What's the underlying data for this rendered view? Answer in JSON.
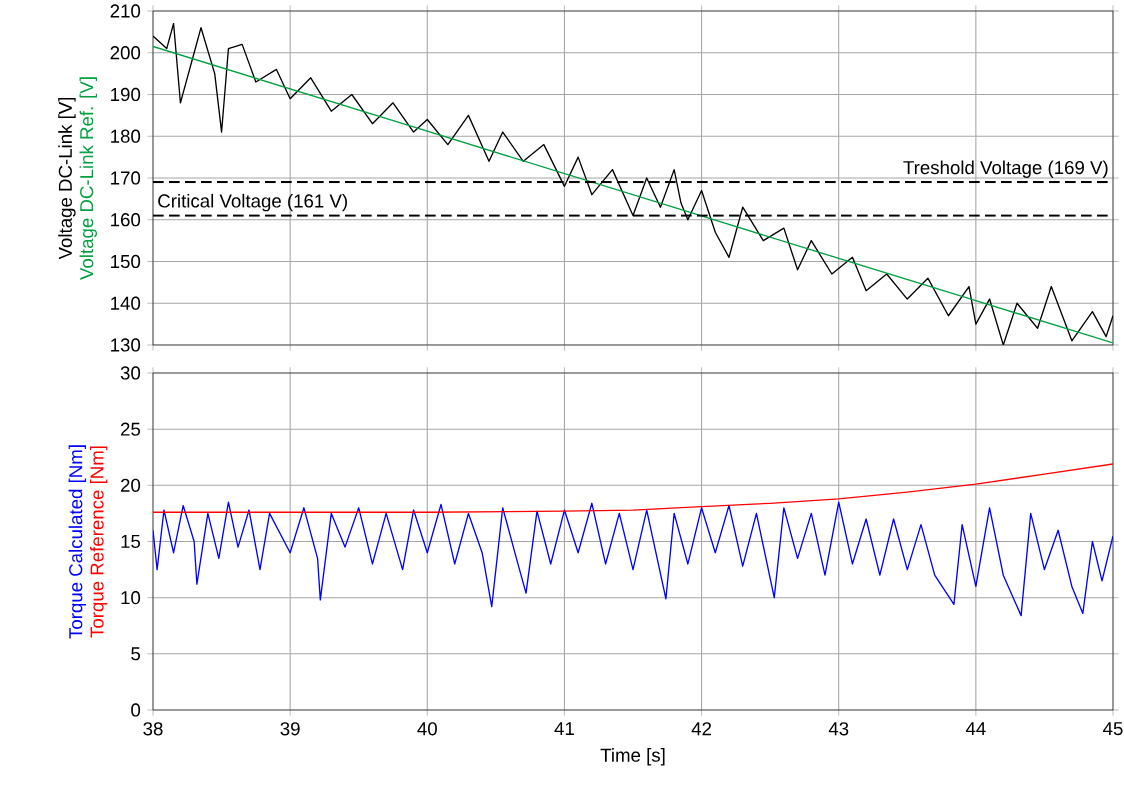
{
  "chart_data": [
    {
      "type": "line",
      "ylabel": "Voltage DC-Link [V]",
      "xlim": [
        38,
        45
      ],
      "xticks": [
        38,
        39,
        40,
        41,
        42,
        43,
        44,
        45
      ],
      "ylim": [
        130,
        210
      ],
      "yticks": [
        130,
        140,
        150,
        160,
        170,
        180,
        190,
        200,
        210
      ],
      "grid": true,
      "tick_labels": "y",
      "series": [
        {
          "color": "#000000",
          "x": [
            38.0,
            38.1,
            38.15,
            38.2,
            38.3,
            38.35,
            38.45,
            38.5,
            38.55,
            38.65,
            38.75,
            38.9,
            39.0,
            39.15,
            39.3,
            39.45,
            39.6,
            39.75,
            39.9,
            40.0,
            40.15,
            40.3,
            40.45,
            40.55,
            40.7,
            40.85,
            41.0,
            41.1,
            41.2,
            41.35,
            41.5,
            41.6,
            41.7,
            41.8,
            41.85,
            41.9,
            42.0,
            42.1,
            42.2,
            42.3,
            42.45,
            42.6,
            42.7,
            42.8,
            42.95,
            43.1,
            43.2,
            43.35,
            43.5,
            43.65,
            43.8,
            43.95,
            44.0,
            44.1,
            44.2,
            44.3,
            44.45,
            44.55,
            44.7,
            44.85,
            44.95,
            45.0
          ],
          "values": [
            204,
            201,
            207,
            188,
            200,
            206,
            195,
            181,
            201,
            202,
            193,
            196,
            189,
            194,
            186,
            190,
            183,
            188,
            181,
            184,
            178,
            185,
            174,
            181,
            174,
            178,
            168,
            175,
            166,
            172,
            161,
            170,
            163,
            172,
            164,
            160,
            167,
            157,
            151,
            163,
            155,
            158,
            148,
            155,
            147,
            151,
            143,
            147,
            141,
            146,
            137,
            144,
            135,
            141,
            130,
            140,
            134,
            144,
            131,
            138,
            132,
            137
          ]
        },
        {
          "name": "Voltage DC-Link Ref. [V]",
          "color": "#00a040",
          "x": [
            38,
            40,
            42,
            44,
            45
          ],
          "values": [
            201.5,
            181.2,
            160.9,
            140.6,
            130.5
          ]
        }
      ],
      "ref_lines": [
        {
          "axis": "y",
          "value": 169,
          "label": "Treshold Voltage (169 V)",
          "color": "#000000",
          "line_style": "dashed"
        },
        {
          "axis": "y",
          "value": 161,
          "label": "Critical Voltage (161 V)",
          "color": "#000000",
          "line_style": "dashed"
        }
      ]
    },
    {
      "type": "line",
      "xlabel": "Time [s]",
      "xlim": [
        38,
        45
      ],
      "xticks": [
        38,
        39,
        40,
        41,
        42,
        43,
        44,
        45
      ],
      "ylim": [
        0,
        30
      ],
      "yticks": [
        0,
        5,
        10,
        15,
        20,
        25,
        30
      ],
      "grid": true,
      "series": [
        {
          "name": "Torque Calculated [Nm]",
          "color": "#0000ff",
          "x": [
            38.0,
            38.03,
            38.08,
            38.15,
            38.22,
            38.3,
            38.32,
            38.4,
            38.48,
            38.55,
            38.62,
            38.7,
            38.78,
            38.85,
            39.0,
            39.1,
            39.2,
            39.22,
            39.3,
            39.4,
            39.5,
            39.6,
            39.7,
            39.82,
            39.9,
            40.0,
            40.1,
            40.2,
            40.3,
            40.4,
            40.47,
            40.55,
            40.65,
            40.72,
            40.8,
            40.9,
            41.0,
            41.1,
            41.2,
            41.3,
            41.4,
            41.5,
            41.6,
            41.74,
            41.8,
            41.9,
            42.0,
            42.1,
            42.2,
            42.3,
            42.4,
            42.53,
            42.6,
            42.7,
            42.8,
            42.9,
            43.0,
            43.1,
            43.2,
            43.3,
            43.4,
            43.5,
            43.6,
            43.7,
            43.84,
            43.9,
            44.0,
            44.1,
            44.2,
            44.33,
            44.4,
            44.5,
            44.6,
            44.7,
            44.78,
            44.85,
            44.92,
            45.0
          ],
          "values": [
            16,
            12.5,
            17.8,
            14,
            18.2,
            15,
            11.2,
            17.5,
            13.5,
            18.5,
            14.5,
            17.8,
            12.5,
            17.5,
            14,
            18,
            13.5,
            9.8,
            17.5,
            14.5,
            18,
            13,
            17.5,
            12.5,
            17.8,
            14,
            18.3,
            13,
            17.5,
            14,
            9.2,
            18,
            13.5,
            10.4,
            17.7,
            13,
            17.8,
            14,
            18.4,
            13,
            17.5,
            12.5,
            17.8,
            9.9,
            17.5,
            13,
            18,
            14,
            18.2,
            12.8,
            17.5,
            10,
            18,
            13.5,
            17.5,
            12,
            18.5,
            13,
            17,
            12,
            17,
            12.5,
            16.5,
            12,
            9.4,
            16.5,
            11,
            18,
            12,
            8.4,
            17.5,
            12.5,
            16,
            11,
            8.6,
            15,
            11.5,
            15.5
          ]
        },
        {
          "name": "Torque Reference [Nm]",
          "color": "#ff0000",
          "x": [
            38,
            39,
            40,
            41,
            41.5,
            42,
            42.5,
            43,
            43.5,
            44,
            44.5,
            45
          ],
          "values": [
            17.6,
            17.6,
            17.6,
            17.7,
            17.8,
            18.1,
            18.4,
            18.8,
            19.4,
            20.1,
            21.0,
            21.9
          ]
        }
      ]
    }
  ]
}
